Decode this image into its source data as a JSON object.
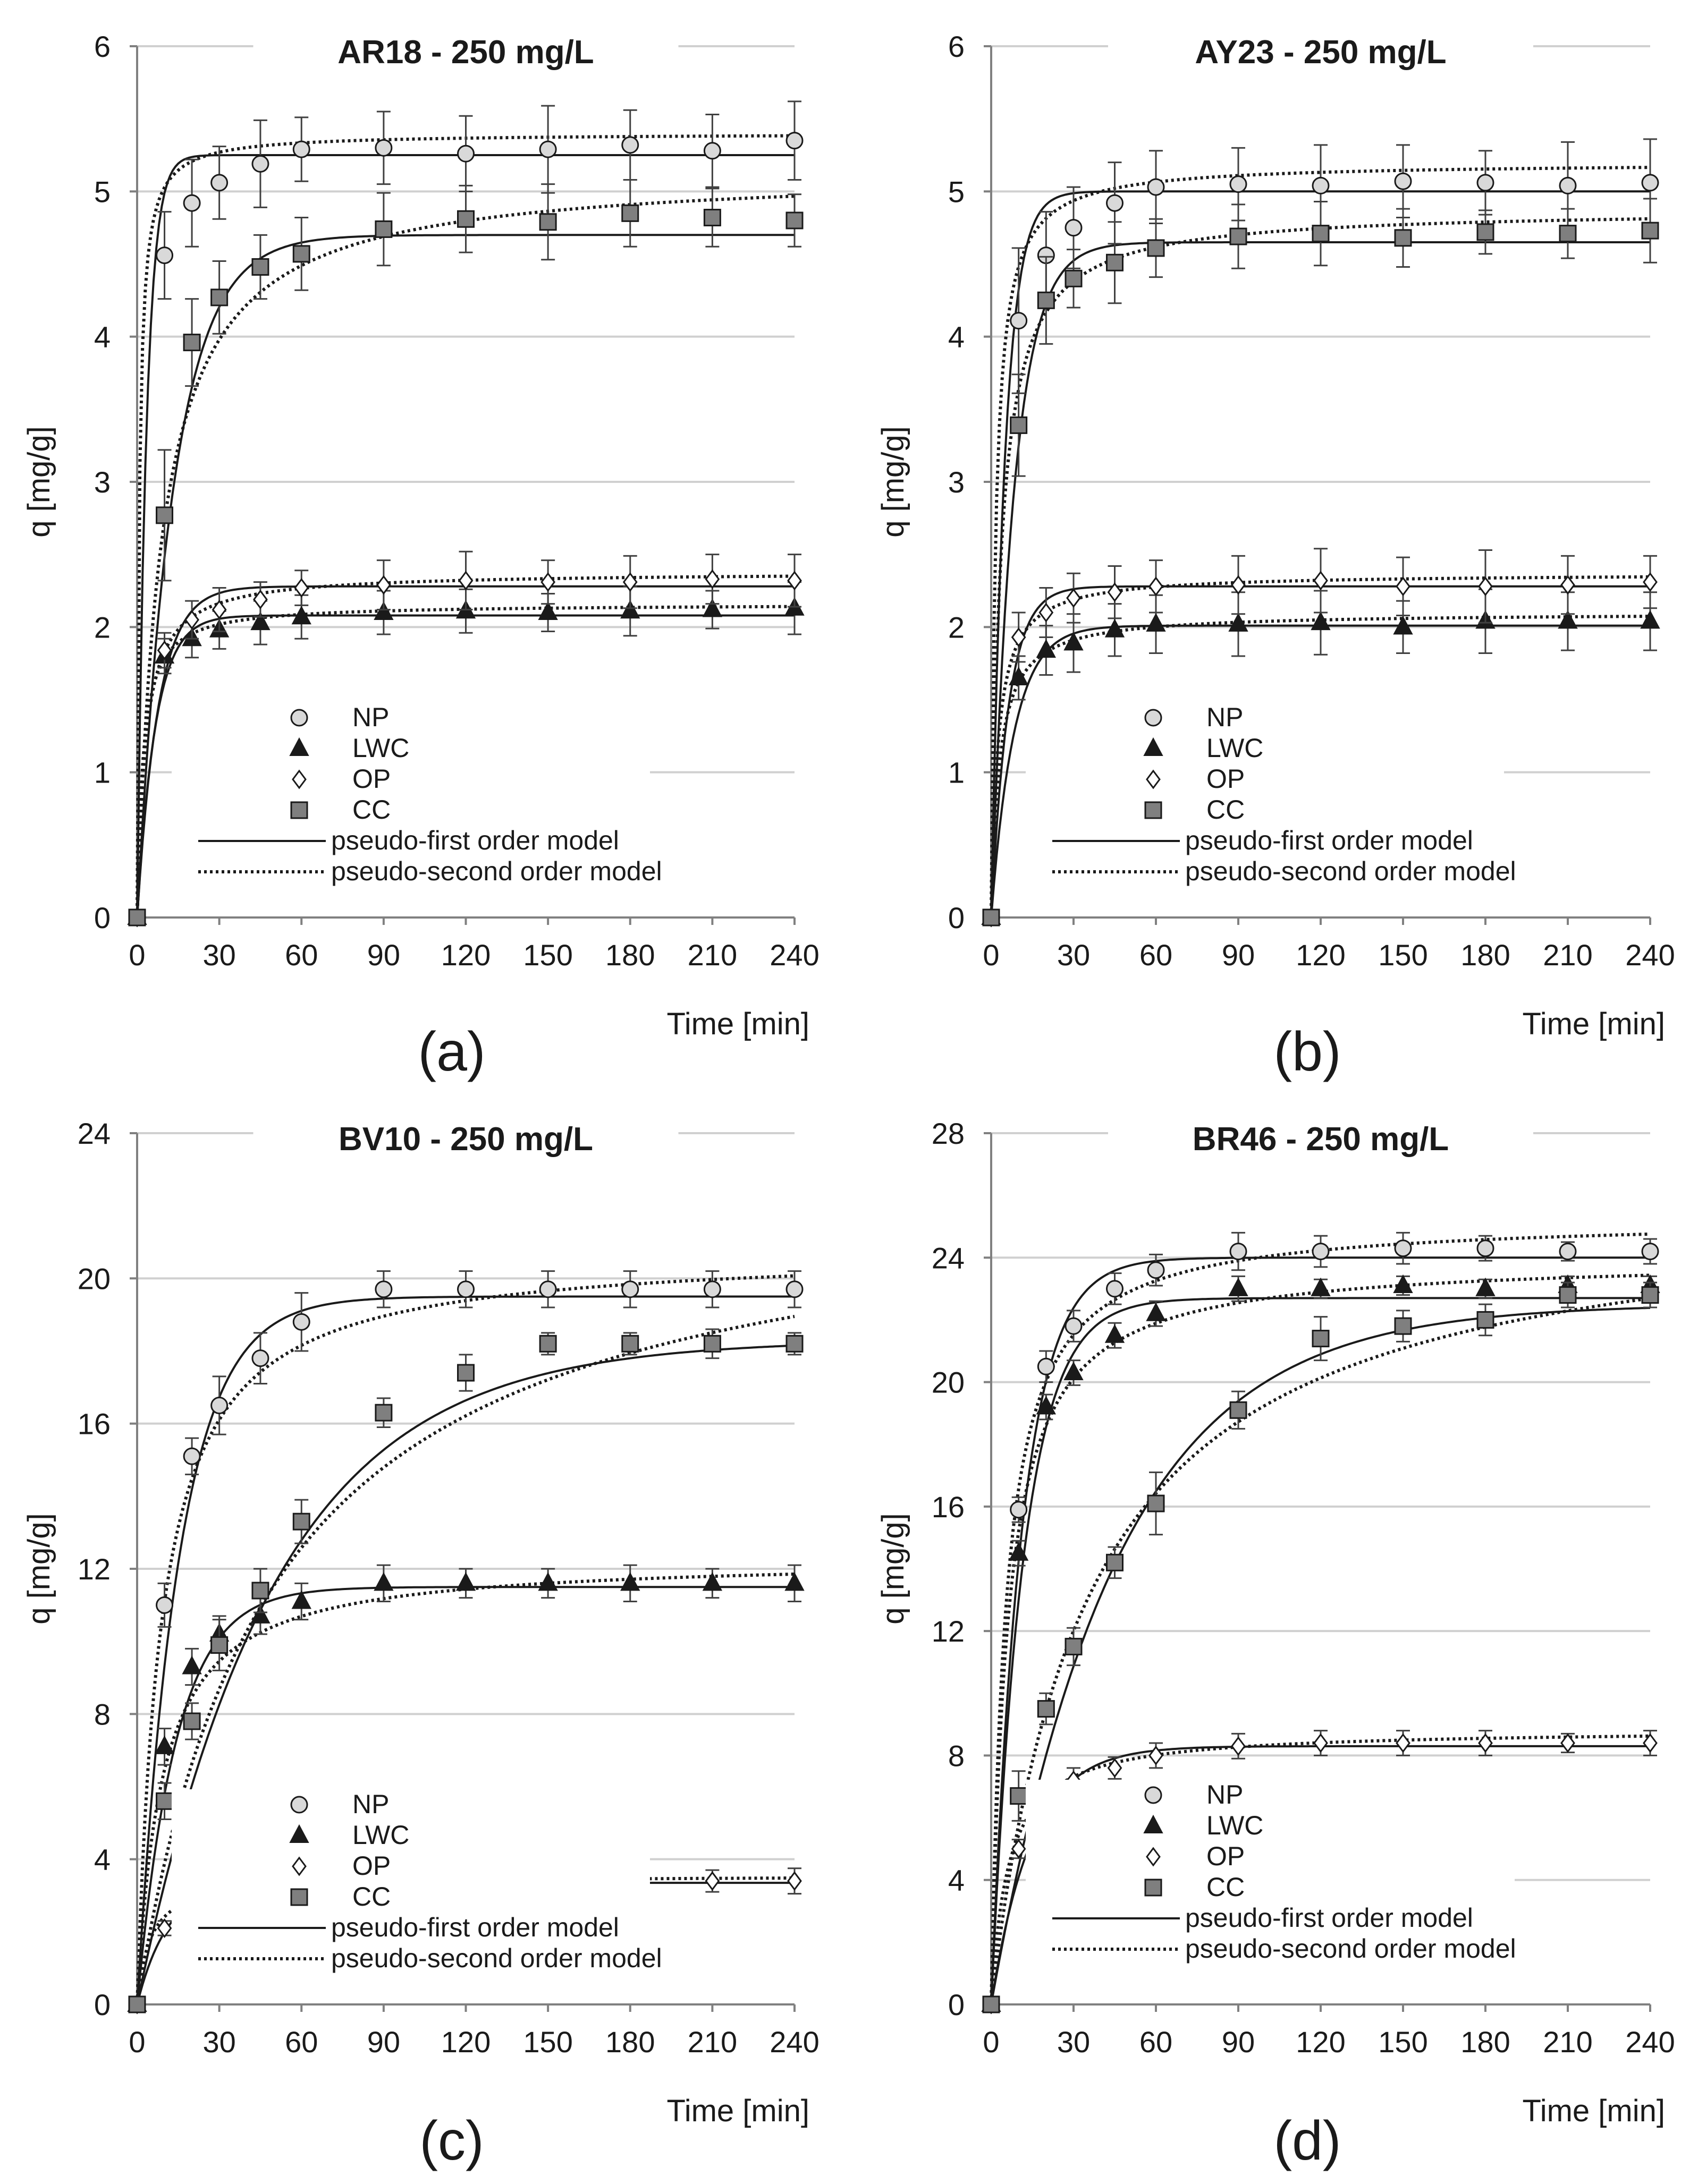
{
  "chart_data": [
    {
      "type": "line",
      "panel_label": "(a)",
      "title": "AR18 - 250 mg/L",
      "xlabel": "Time [min]",
      "ylabel": "q [mg/g]",
      "xlim": [
        0,
        240
      ],
      "ylim": [
        0,
        6
      ],
      "xticks": [
        "0",
        "30",
        "60",
        "90",
        "120",
        "150",
        "180",
        "210",
        "240"
      ],
      "yticks": [
        "0",
        "1",
        "2",
        "3",
        "4",
        "5",
        "6"
      ],
      "x": [
        0,
        10,
        20,
        30,
        45,
        60,
        90,
        120,
        150,
        180,
        210,
        240
      ],
      "series": [
        {
          "name": "NP",
          "marker": "circle",
          "fill": "#d9d9d9",
          "values": [
            0,
            4.56,
            4.92,
            5.06,
            5.19,
            5.29,
            5.3,
            5.26,
            5.29,
            5.32,
            5.28,
            5.35
          ],
          "errors": [
            0,
            0.3,
            0.3,
            0.25,
            0.3,
            0.22,
            0.25,
            0.26,
            0.3,
            0.24,
            0.25,
            0.27
          ],
          "pfo": {
            "qe": 5.25,
            "k1": 0.3
          },
          "pso": {
            "qe": 5.4,
            "k2": 0.25
          }
        },
        {
          "name": "LWC",
          "marker": "triangle",
          "fill": "#1a1a1a",
          "values": [
            0,
            1.8,
            1.92,
            1.98,
            2.03,
            2.07,
            2.1,
            2.11,
            2.1,
            2.11,
            2.12,
            2.13
          ],
          "errors": [
            0,
            0.12,
            0.13,
            0.13,
            0.15,
            0.15,
            0.15,
            0.15,
            0.13,
            0.17,
            0.13,
            0.18
          ],
          "pfo": {
            "qe": 2.08,
            "k1": 0.15
          },
          "pso": {
            "qe": 2.16,
            "k2": 0.22
          }
        },
        {
          "name": "OP",
          "marker": "diamond",
          "fill": "#ffffff",
          "values": [
            0,
            1.84,
            2.05,
            2.12,
            2.19,
            2.27,
            2.29,
            2.32,
            2.31,
            2.31,
            2.33,
            2.32
          ],
          "errors": [
            0,
            0.12,
            0.13,
            0.15,
            0.12,
            0.12,
            0.17,
            0.2,
            0.15,
            0.18,
            0.17,
            0.18
          ],
          "pfo": {
            "qe": 2.28,
            "k1": 0.13
          },
          "pso": {
            "qe": 2.38,
            "k2": 0.14
          }
        },
        {
          "name": "CC",
          "marker": "square",
          "fill": "#7f7f7f",
          "values": [
            0,
            2.77,
            3.96,
            4.27,
            4.48,
            4.57,
            4.74,
            4.81,
            4.79,
            4.85,
            4.82,
            4.8
          ],
          "errors": [
            0,
            0.45,
            0.3,
            0.25,
            0.22,
            0.25,
            0.25,
            0.23,
            0.26,
            0.23,
            0.2,
            0.18
          ],
          "pfo": {
            "qe": 4.7,
            "k1": 0.075
          },
          "pso": {
            "qe": 5.15,
            "k2": 0.022
          }
        }
      ],
      "legend": {
        "position": "lower-middle",
        "entries": [
          "NP",
          "LWC",
          "OP",
          "CC",
          "pseudo-first order model",
          "pseudo-second order model"
        ]
      }
    },
    {
      "type": "line",
      "panel_label": "(b)",
      "title": "AY23 - 250 mg/L",
      "xlabel": "Time [min]",
      "ylabel": "q [mg/g]",
      "xlim": [
        0,
        240
      ],
      "ylim": [
        0,
        6
      ],
      "xticks": [
        "0",
        "30",
        "60",
        "90",
        "120",
        "150",
        "180",
        "210",
        "240"
      ],
      "yticks": [
        "0",
        "1",
        "2",
        "3",
        "4",
        "5",
        "6"
      ],
      "x": [
        0,
        10,
        20,
        30,
        45,
        60,
        90,
        120,
        150,
        180,
        210,
        240
      ],
      "series": [
        {
          "name": "NP",
          "marker": "circle",
          "fill": "#d9d9d9",
          "values": [
            0,
            4.11,
            4.56,
            4.75,
            4.92,
            5.03,
            5.05,
            5.04,
            5.07,
            5.06,
            5.04,
            5.06
          ],
          "errors": [
            0,
            0.5,
            0.3,
            0.28,
            0.28,
            0.25,
            0.25,
            0.28,
            0.25,
            0.22,
            0.3,
            0.3
          ],
          "pfo": {
            "qe": 5.0,
            "k1": 0.2
          },
          "pso": {
            "qe": 5.2,
            "k2": 0.12
          }
        },
        {
          "name": "LWC",
          "marker": "triangle",
          "fill": "#1a1a1a",
          "values": [
            0,
            1.65,
            1.84,
            1.89,
            1.98,
            2.02,
            2.02,
            2.03,
            2.0,
            2.04,
            2.04,
            2.04
          ],
          "errors": [
            0,
            0.15,
            0.17,
            0.2,
            0.18,
            0.2,
            0.22,
            0.22,
            0.18,
            0.22,
            0.2,
            0.2
          ],
          "pfo": {
            "qe": 2.01,
            "k1": 0.12
          },
          "pso": {
            "qe": 2.1,
            "k2": 0.16
          }
        },
        {
          "name": "OP",
          "marker": "diamond",
          "fill": "#ffffff",
          "values": [
            0,
            1.93,
            2.1,
            2.2,
            2.24,
            2.28,
            2.29,
            2.32,
            2.28,
            2.28,
            2.29,
            2.31
          ],
          "errors": [
            0,
            0.17,
            0.17,
            0.17,
            0.18,
            0.18,
            0.2,
            0.22,
            0.2,
            0.25,
            0.2,
            0.18
          ],
          "pfo": {
            "qe": 2.28,
            "k1": 0.16
          },
          "pso": {
            "qe": 2.37,
            "k2": 0.17
          }
        },
        {
          "name": "CC",
          "marker": "square",
          "fill": "#7f7f7f",
          "values": [
            0,
            3.39,
            4.25,
            4.4,
            4.51,
            4.61,
            4.69,
            4.71,
            4.68,
            4.72,
            4.71,
            4.73
          ],
          "errors": [
            0,
            0.35,
            0.3,
            0.2,
            0.28,
            0.2,
            0.22,
            0.22,
            0.2,
            0.15,
            0.17,
            0.22
          ],
          "pfo": {
            "qe": 4.65,
            "k1": 0.12
          },
          "pso": {
            "qe": 4.88,
            "k2": 0.06
          }
        }
      ],
      "legend": {
        "position": "lower-middle",
        "entries": [
          "NP",
          "LWC",
          "OP",
          "CC",
          "pseudo-first order model",
          "pseudo-second order model"
        ]
      }
    },
    {
      "type": "line",
      "panel_label": "(c)",
      "title": "BV10 - 250 mg/L",
      "xlabel": "Time [min]",
      "ylabel": "q [mg/g]",
      "xlim": [
        0,
        240
      ],
      "ylim": [
        0,
        24
      ],
      "xticks": [
        "0",
        "30",
        "60",
        "90",
        "120",
        "150",
        "180",
        "210",
        "240"
      ],
      "yticks": [
        "0",
        "4",
        "8",
        "12",
        "16",
        "20",
        "24"
      ],
      "x": [
        0,
        10,
        20,
        30,
        45,
        60,
        90,
        120,
        150,
        180,
        210,
        240
      ],
      "series": [
        {
          "name": "NP",
          "marker": "circle",
          "fill": "#d9d9d9",
          "values": [
            0,
            11.0,
            15.1,
            16.5,
            17.8,
            18.8,
            19.7,
            19.7,
            19.7,
            19.7,
            19.7,
            19.7
          ],
          "errors": [
            0,
            0.6,
            0.5,
            0.8,
            0.7,
            0.8,
            0.5,
            0.5,
            0.5,
            0.5,
            0.5,
            0.5
          ],
          "pfo": {
            "qe": 19.5,
            "k1": 0.065
          },
          "pso": {
            "qe": 20.8,
            "k2": 0.0055
          }
        },
        {
          "name": "LWC",
          "marker": "triangle",
          "fill": "#1a1a1a",
          "values": [
            0,
            7.1,
            9.3,
            10.2,
            10.7,
            11.1,
            11.6,
            11.6,
            11.6,
            11.6,
            11.6,
            11.6
          ],
          "errors": [
            0,
            0.5,
            0.5,
            0.5,
            0.5,
            0.5,
            0.5,
            0.4,
            0.4,
            0.5,
            0.4,
            0.5
          ],
          "pfo": {
            "qe": 11.5,
            "k1": 0.07
          },
          "pso": {
            "qe": 12.3,
            "k2": 0.009
          }
        },
        {
          "name": "OP",
          "marker": "diamond",
          "fill": "#ffffff",
          "values": [
            0,
            2.1,
            2.8,
            3.1,
            3.2,
            3.3,
            3.4,
            3.4,
            3.4,
            3.4,
            3.4,
            3.4
          ],
          "errors": [
            0,
            0.2,
            0.25,
            0.3,
            0.3,
            0.3,
            0.35,
            0.3,
            0.3,
            0.3,
            0.3,
            0.35
          ],
          "pfo": {
            "qe": 3.35,
            "k1": 0.09
          },
          "pso": {
            "qe": 3.55,
            "k2": 0.06
          }
        },
        {
          "name": "CC",
          "marker": "square",
          "fill": "#7f7f7f",
          "values": [
            0,
            5.6,
            7.8,
            9.9,
            11.4,
            13.3,
            16.3,
            17.4,
            18.2,
            18.2,
            18.2,
            18.2
          ],
          "errors": [
            0,
            0.5,
            0.5,
            0.7,
            0.6,
            0.6,
            0.4,
            0.5,
            0.3,
            0.3,
            0.4,
            0.3
          ],
          "pfo": {
            "qe": 18.3,
            "k1": 0.02
          },
          "pso": {
            "qe": 22.8,
            "k2": 0.0009
          }
        }
      ],
      "legend": {
        "position": "lower-middle",
        "entries": [
          "NP",
          "LWC",
          "OP",
          "CC",
          "pseudo-first order model",
          "pseudo-second order model"
        ]
      }
    },
    {
      "type": "line",
      "panel_label": "(d)",
      "title": "BR46 - 250 mg/L",
      "xlabel": "Time [min]",
      "ylabel": "q [mg/g]",
      "xlim": [
        0,
        240
      ],
      "ylim": [
        0,
        28
      ],
      "xticks": [
        "0",
        "30",
        "60",
        "90",
        "120",
        "150",
        "180",
        "210",
        "240"
      ],
      "yticks": [
        "0",
        "4",
        "8",
        "12",
        "16",
        "20",
        "24",
        "28"
      ],
      "x": [
        0,
        10,
        20,
        30,
        45,
        60,
        90,
        120,
        150,
        180,
        210,
        240
      ],
      "series": [
        {
          "name": "NP",
          "marker": "circle",
          "fill": "#d9d9d9",
          "values": [
            0,
            15.9,
            20.5,
            21.8,
            23.0,
            23.6,
            24.2,
            24.2,
            24.3,
            24.3,
            24.2,
            24.2
          ],
          "errors": [
            0,
            0.4,
            0.5,
            0.5,
            0.5,
            0.5,
            0.6,
            0.5,
            0.5,
            0.4,
            0.3,
            0.4
          ],
          "pfo": {
            "qe": 24.0,
            "k1": 0.09
          },
          "pso": {
            "qe": 25.3,
            "k2": 0.0075
          }
        },
        {
          "name": "LWC",
          "marker": "triangle",
          "fill": "#1a1a1a",
          "values": [
            0,
            14.5,
            19.2,
            20.3,
            21.5,
            22.2,
            23.0,
            23.0,
            23.1,
            23.0,
            23.1,
            23.1
          ],
          "errors": [
            0,
            0.4,
            0.4,
            0.4,
            0.4,
            0.4,
            0.4,
            0.3,
            0.3,
            0.3,
            0.3,
            0.3
          ],
          "pfo": {
            "qe": 22.7,
            "k1": 0.085
          },
          "pso": {
            "qe": 24.0,
            "k2": 0.0072
          }
        },
        {
          "name": "OP",
          "marker": "diamond",
          "fill": "#ffffff",
          "values": [
            0,
            5.0,
            6.6,
            7.2,
            7.6,
            8.0,
            8.3,
            8.4,
            8.4,
            8.4,
            8.4,
            8.4
          ],
          "errors": [
            0,
            0.3,
            0.4,
            0.4,
            0.35,
            0.4,
            0.4,
            0.4,
            0.4,
            0.4,
            0.3,
            0.4
          ],
          "pfo": {
            "qe": 8.3,
            "k1": 0.068
          },
          "pso": {
            "qe": 8.85,
            "k2": 0.018
          }
        },
        {
          "name": "CC",
          "marker": "square",
          "fill": "#7f7f7f",
          "values": [
            0,
            6.7,
            9.5,
            11.5,
            14.2,
            16.1,
            19.1,
            21.4,
            21.8,
            22.0,
            22.8,
            22.8
          ],
          "errors": [
            0,
            0.8,
            0.5,
            0.6,
            0.5,
            1.0,
            0.6,
            0.7,
            0.5,
            0.5,
            0.4,
            0.4
          ],
          "pfo": {
            "qe": 22.5,
            "k1": 0.022
          },
          "pso": {
            "qe": 26.0,
            "k2": 0.0011
          }
        }
      ],
      "legend": {
        "position": "lower-middle",
        "entries": [
          "NP",
          "LWC",
          "OP",
          "CC",
          "pseudo-first order model",
          "pseudo-second order model"
        ]
      }
    }
  ]
}
